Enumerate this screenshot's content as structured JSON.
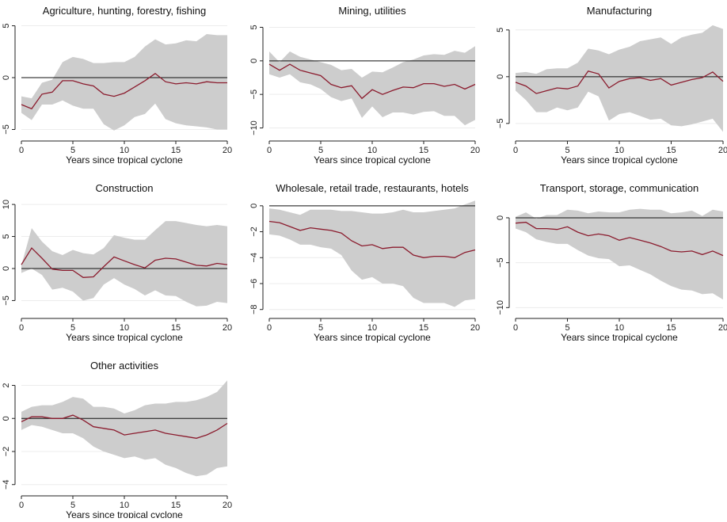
{
  "chart_data": [
    {
      "type": "line",
      "title": "Agriculture, hunting, forestry, fishing",
      "xlabel": "Years since tropical cyclone",
      "ylabel": "",
      "xlim": [
        0,
        20
      ],
      "ylim": [
        -5.5,
        5.5
      ],
      "xticks": [
        0,
        5,
        10,
        15,
        20
      ],
      "yticks": [
        -5,
        0,
        5
      ],
      "rotate_ytick_labels": true,
      "zero_line": true,
      "x": [
        0,
        1,
        2,
        3,
        4,
        5,
        6,
        7,
        8,
        9,
        10,
        11,
        12,
        13,
        14,
        15,
        16,
        17,
        18,
        19,
        20
      ],
      "series": [
        {
          "values": [
            -2.6,
            -3.0,
            -1.6,
            -1.4,
            -0.3,
            -0.3,
            -0.6,
            -0.8,
            -1.6,
            -1.8,
            -1.5,
            -0.9,
            -0.3,
            0.4,
            -0.4,
            -0.6,
            -0.5,
            -0.6,
            -0.4,
            -0.5,
            -0.5
          ]
        }
      ],
      "ci_upper": [
        -1.8,
        -2.0,
        -0.5,
        -0.2,
        1.5,
        2.0,
        1.8,
        1.4,
        1.4,
        1.5,
        1.5,
        2.0,
        3.0,
        3.7,
        3.2,
        3.3,
        3.6,
        3.5,
        4.2,
        4.1,
        4.1
      ],
      "ci_lower": [
        -3.4,
        -4.1,
        -2.6,
        -2.6,
        -2.2,
        -2.7,
        -3.0,
        -3.0,
        -4.5,
        -5.1,
        -4.6,
        -3.8,
        -3.5,
        -2.5,
        -4.0,
        -4.4,
        -4.6,
        -4.7,
        -4.8,
        -5.0,
        -5.0
      ],
      "line_color": "#8b1c2e",
      "band_color": "#cdcdcd"
    },
    {
      "type": "line",
      "title": "Mining, utilities",
      "xlabel": "Years since tropical cyclone",
      "ylabel": "",
      "xlim": [
        0,
        20
      ],
      "ylim": [
        -11,
        6
      ],
      "xticks": [
        0,
        5,
        10,
        15,
        20
      ],
      "yticks": [
        -10,
        -5,
        0,
        5
      ],
      "rotate_ytick_labels": true,
      "zero_line": true,
      "x": [
        0,
        1,
        2,
        3,
        4,
        5,
        6,
        7,
        8,
        9,
        10,
        11,
        12,
        13,
        14,
        15,
        16,
        17,
        18,
        19,
        20
      ],
      "series": [
        {
          "values": [
            -0.5,
            -1.4,
            -0.5,
            -1.4,
            -1.8,
            -2.2,
            -3.5,
            -4.0,
            -3.7,
            -5.6,
            -4.3,
            -5.0,
            -4.4,
            -3.9,
            -4.0,
            -3.4,
            -3.4,
            -3.8,
            -3.5,
            -4.2,
            -3.5
          ]
        }
      ],
      "ci_upper": [
        1.4,
        -0.2,
        1.4,
        0.6,
        0.2,
        -0.2,
        -0.6,
        -1.4,
        -1.2,
        -2.5,
        -1.6,
        -1.7,
        -1.0,
        -0.2,
        0.2,
        0.8,
        1.0,
        0.9,
        1.5,
        1.2,
        2.2
      ],
      "ci_lower": [
        -2.0,
        -2.5,
        -2.0,
        -3.2,
        -3.5,
        -4.2,
        -5.4,
        -6.0,
        -5.6,
        -8.5,
        -6.8,
        -8.4,
        -7.7,
        -7.7,
        -8.0,
        -7.6,
        -7.5,
        -8.2,
        -8.2,
        -9.6,
        -8.8
      ],
      "line_color": "#8b1c2e",
      "band_color": "#cdcdcd"
    },
    {
      "type": "line",
      "title": "Manufacturing",
      "xlabel": "Years since tropical cyclone",
      "ylabel": "",
      "xlim": [
        0,
        20
      ],
      "ylim": [
        -6.2,
        6
      ],
      "xticks": [
        0,
        5,
        10,
        15,
        20
      ],
      "yticks": [
        -5,
        0,
        5
      ],
      "rotate_ytick_labels": true,
      "zero_line": true,
      "x": [
        0,
        1,
        2,
        3,
        4,
        5,
        6,
        7,
        8,
        9,
        10,
        11,
        12,
        13,
        14,
        15,
        16,
        17,
        18,
        19,
        20
      ],
      "series": [
        {
          "values": [
            -0.6,
            -1.0,
            -1.8,
            -1.5,
            -1.2,
            -1.3,
            -1.0,
            0.6,
            0.3,
            -1.2,
            -0.5,
            -0.2,
            -0.1,
            -0.4,
            -0.2,
            -0.9,
            -0.6,
            -0.3,
            -0.1,
            0.5,
            -0.5
          ]
        }
      ],
      "ci_upper": [
        0.4,
        0.5,
        0.3,
        0.8,
        0.9,
        0.9,
        1.5,
        3.0,
        2.8,
        2.4,
        2.9,
        3.2,
        3.8,
        4.0,
        4.2,
        3.5,
        4.2,
        4.5,
        4.7,
        5.5,
        5.1
      ],
      "ci_lower": [
        -1.5,
        -2.5,
        -3.8,
        -3.8,
        -3.3,
        -3.6,
        -3.3,
        -1.6,
        -2.1,
        -4.7,
        -4.0,
        -3.8,
        -4.2,
        -4.6,
        -4.5,
        -5.2,
        -5.3,
        -5.1,
        -4.8,
        -4.5,
        -5.9
      ],
      "line_color": "#8b1c2e",
      "band_color": "#cdcdcd"
    },
    {
      "type": "line",
      "title": "Construction",
      "xlabel": "Years since tropical cyclone",
      "ylabel": "",
      "xlim": [
        0,
        20
      ],
      "ylim": [
        -6.8,
        11
      ],
      "xticks": [
        0,
        5,
        10,
        15,
        20
      ],
      "yticks": [
        -5,
        0,
        5,
        10
      ],
      "rotate_ytick_labels": true,
      "zero_line": true,
      "x": [
        0,
        1,
        2,
        3,
        4,
        5,
        6,
        7,
        8,
        9,
        10,
        11,
        12,
        13,
        14,
        15,
        16,
        17,
        18,
        19,
        20
      ],
      "series": [
        {
          "values": [
            0.6,
            3.2,
            1.6,
            -0.1,
            -0.3,
            -0.3,
            -1.4,
            -1.3,
            0.3,
            1.8,
            1.2,
            0.6,
            0.1,
            1.3,
            1.6,
            1.5,
            1.0,
            0.5,
            0.4,
            0.8,
            0.6
          ]
        }
      ],
      "ci_upper": [
        0.5,
        6.3,
        4.2,
        2.7,
        2.1,
        2.9,
        2.4,
        2.2,
        3.2,
        5.2,
        4.8,
        4.5,
        4.5,
        6.0,
        7.4,
        7.4,
        7.1,
        6.8,
        6.6,
        6.8,
        6.6
      ],
      "ci_lower": [
        -0.7,
        0.0,
        -1.0,
        -3.3,
        -3.0,
        -3.6,
        -5.0,
        -4.6,
        -2.5,
        -1.5,
        -2.5,
        -3.2,
        -4.2,
        -3.4,
        -4.2,
        -4.3,
        -5.2,
        -5.9,
        -5.8,
        -5.2,
        -5.4
      ],
      "line_color": "#8b1c2e",
      "band_color": "#cdcdcd"
    },
    {
      "type": "line",
      "title": "Wholesale, retail trade, restaurants, hotels",
      "xlabel": "Years since tropical cyclone",
      "ylabel": "",
      "xlim": [
        0,
        20
      ],
      "ylim": [
        -8.2,
        0.6
      ],
      "xticks": [
        0,
        5,
        10,
        15,
        20
      ],
      "yticks": [
        -8,
        -6,
        -4,
        -2,
        0
      ],
      "rotate_ytick_labels": true,
      "zero_line": true,
      "x": [
        0,
        1,
        2,
        3,
        4,
        5,
        6,
        7,
        8,
        9,
        10,
        11,
        12,
        13,
        14,
        15,
        16,
        17,
        18,
        19,
        20
      ],
      "series": [
        {
          "values": [
            -1.2,
            -1.3,
            -1.6,
            -1.9,
            -1.7,
            -1.8,
            -1.9,
            -2.1,
            -2.7,
            -3.1,
            -3.0,
            -3.3,
            -3.2,
            -3.2,
            -3.8,
            -4.0,
            -3.9,
            -3.9,
            -4.0,
            -3.6,
            -3.4
          ]
        }
      ],
      "ci_upper": [
        -0.2,
        -0.3,
        -0.5,
        -0.7,
        -0.3,
        -0.3,
        -0.3,
        -0.4,
        -0.4,
        -0.5,
        -0.6,
        -0.6,
        -0.5,
        -0.3,
        -0.5,
        -0.5,
        -0.4,
        -0.3,
        -0.2,
        0.1,
        0.4
      ],
      "ci_lower": [
        -2.2,
        -2.3,
        -2.6,
        -3.0,
        -3.0,
        -3.2,
        -3.3,
        -3.8,
        -5.0,
        -5.7,
        -5.5,
        -6.0,
        -6.0,
        -6.2,
        -7.1,
        -7.5,
        -7.5,
        -7.5,
        -7.8,
        -7.3,
        -7.2
      ],
      "line_color": "#8b1c2e",
      "band_color": "#cdcdcd"
    },
    {
      "type": "line",
      "title": "Transport, storage, communication",
      "xlabel": "Years since tropical cyclone",
      "ylabel": "",
      "xlim": [
        0,
        20
      ],
      "ylim": [
        -10.5,
        2.2
      ],
      "xticks": [
        0,
        5,
        10,
        15,
        20
      ],
      "yticks": [
        -10,
        -5,
        0
      ],
      "rotate_ytick_labels": true,
      "zero_line": true,
      "x": [
        0,
        1,
        2,
        3,
        4,
        5,
        6,
        7,
        8,
        9,
        10,
        11,
        12,
        13,
        14,
        15,
        16,
        17,
        18,
        19,
        20
      ],
      "series": [
        {
          "values": [
            -0.6,
            -0.5,
            -1.2,
            -1.2,
            -1.3,
            -1.0,
            -1.6,
            -2.0,
            -1.8,
            -2.0,
            -2.5,
            -2.2,
            -2.5,
            -2.8,
            -3.2,
            -3.7,
            -3.8,
            -3.7,
            -4.1,
            -3.7,
            -4.2
          ]
        }
      ],
      "ci_upper": [
        0.1,
        0.6,
        -0.1,
        0.3,
        0.3,
        0.9,
        0.8,
        0.5,
        0.7,
        0.6,
        0.6,
        0.9,
        1.0,
        0.9,
        0.9,
        0.5,
        0.6,
        0.8,
        0.2,
        0.9,
        0.7
      ],
      "ci_lower": [
        -1.2,
        -1.6,
        -2.4,
        -2.7,
        -2.9,
        -2.9,
        -3.6,
        -4.2,
        -4.5,
        -4.6,
        -5.4,
        -5.3,
        -5.8,
        -6.3,
        -7.0,
        -7.6,
        -8.0,
        -8.1,
        -8.5,
        -8.4,
        -9.1
      ],
      "line_color": "#8b1c2e",
      "band_color": "#cdcdcd"
    },
    {
      "type": "line",
      "title": "Other activities",
      "xlabel": "Years since tropical cyclone",
      "ylabel": "",
      "xlim": [
        0,
        20
      ],
      "ylim": [
        -4.3,
        2.6
      ],
      "xticks": [
        0,
        5,
        10,
        15,
        20
      ],
      "yticks": [
        -4,
        -2,
        0,
        2
      ],
      "rotate_ytick_labels": true,
      "zero_line": true,
      "x": [
        0,
        1,
        2,
        3,
        4,
        5,
        6,
        7,
        8,
        9,
        10,
        11,
        12,
        13,
        14,
        15,
        16,
        17,
        18,
        19,
        20
      ],
      "series": [
        {
          "values": [
            -0.2,
            0.1,
            0.1,
            0.0,
            0.0,
            0.2,
            -0.1,
            -0.5,
            -0.6,
            -0.7,
            -1.0,
            -0.9,
            -0.8,
            -0.7,
            -0.9,
            -1.0,
            -1.1,
            -1.2,
            -1.0,
            -0.7,
            -0.3
          ]
        }
      ],
      "ci_upper": [
        0.4,
        0.7,
        0.8,
        0.8,
        1.0,
        1.3,
        1.2,
        0.7,
        0.7,
        0.6,
        0.3,
        0.5,
        0.8,
        0.9,
        0.9,
        1.0,
        1.0,
        1.1,
        1.3,
        1.6,
        2.3
      ],
      "ci_lower": [
        -0.7,
        -0.4,
        -0.5,
        -0.7,
        -0.9,
        -0.9,
        -1.2,
        -1.7,
        -2.0,
        -2.2,
        -2.4,
        -2.3,
        -2.5,
        -2.4,
        -2.8,
        -3.0,
        -3.3,
        -3.5,
        -3.4,
        -3.0,
        -2.9
      ],
      "line_color": "#8b1c2e",
      "band_color": "#cdcdcd"
    }
  ]
}
